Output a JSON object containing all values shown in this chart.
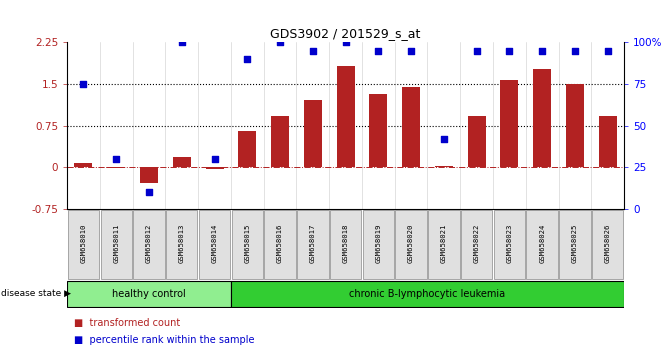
{
  "title": "GDS3902 / 201529_s_at",
  "samples": [
    "GSM658010",
    "GSM658011",
    "GSM658012",
    "GSM658013",
    "GSM658014",
    "GSM658015",
    "GSM658016",
    "GSM658017",
    "GSM658018",
    "GSM658019",
    "GSM658020",
    "GSM658021",
    "GSM658022",
    "GSM658023",
    "GSM658024",
    "GSM658025",
    "GSM658026"
  ],
  "bar_values": [
    0.07,
    -0.02,
    -0.28,
    0.18,
    -0.03,
    0.65,
    0.92,
    1.22,
    1.83,
    1.32,
    1.44,
    0.02,
    0.92,
    1.57,
    1.78,
    1.5,
    0.92
  ],
  "dot_values": [
    75,
    30,
    10,
    100,
    30,
    90,
    100,
    95,
    100,
    95,
    95,
    42,
    95,
    95,
    95,
    95,
    95
  ],
  "bar_color": "#b22222",
  "dot_color": "#0000cc",
  "ylim_left": [
    -0.75,
    2.25
  ],
  "ylim_right": [
    0,
    100
  ],
  "yticks_left": [
    -0.75,
    0,
    0.75,
    1.5,
    2.25
  ],
  "yticks_right": [
    0,
    25,
    50,
    75,
    100
  ],
  "hline_y": [
    0.75,
    1.5
  ],
  "healthy_count": 5,
  "healthy_label": "healthy control",
  "disease_label": "chronic B-lymphocytic leukemia",
  "healthy_color": "#90ee90",
  "disease_color": "#32cd32",
  "label_bar": "transformed count",
  "label_dot": "percentile rank within the sample",
  "disease_state_label": "disease state"
}
